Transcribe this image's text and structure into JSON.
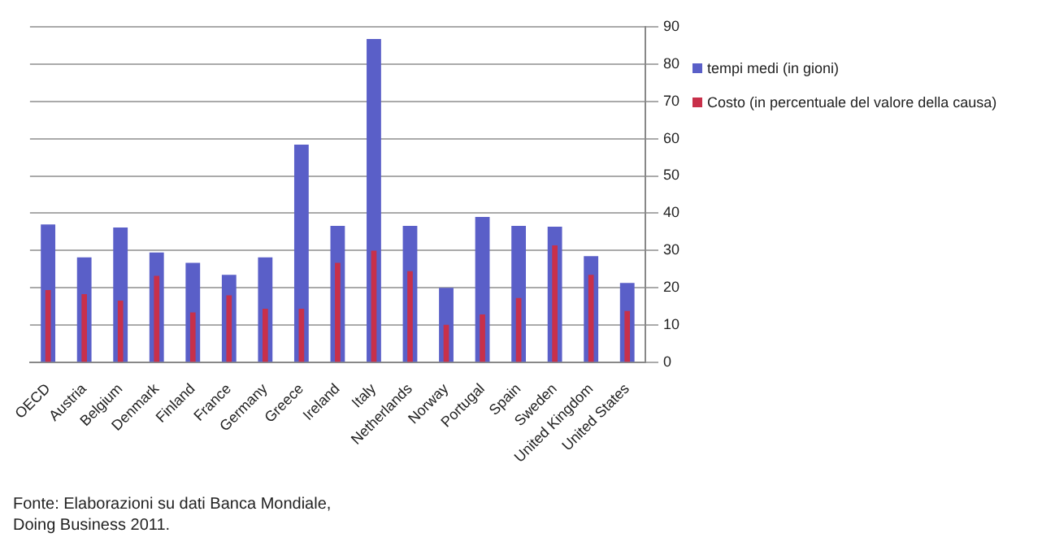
{
  "chart_data": {
    "type": "bar",
    "categories": [
      "OECD",
      "Austria",
      "Belgium",
      "Denmark",
      "Finland",
      "France",
      "Germany",
      "Greece",
      "Ireland",
      "Italy",
      "Netherlands",
      "Norway",
      "Portugal",
      "Spain",
      "Sweden",
      "United Kingdom",
      "United States"
    ],
    "series": [
      {
        "name": "tempi medi (in gioni)",
        "color": "#5a5fc8",
        "values": [
          37,
          28.2,
          36.2,
          29.5,
          26.7,
          23.5,
          28.2,
          58.4,
          36.6,
          86.7,
          36.6,
          20,
          39,
          36.6,
          36.4,
          28.5,
          21.3
        ]
      },
      {
        "name": "Costo (in percentuale del valore della causa)",
        "color": "#c8304a",
        "values": [
          19.4,
          18.3,
          16.6,
          23.2,
          13.4,
          18,
          14.4,
          14.4,
          26.7,
          30,
          24.5,
          10.1,
          12.9,
          17.3,
          31.4,
          23.5,
          13.8
        ]
      }
    ],
    "ylim": [
      0,
      90
    ],
    "yticks": [
      0,
      10,
      20,
      30,
      40,
      50,
      60,
      70,
      80,
      90
    ],
    "grid": "y",
    "legend": "top right",
    "annotations": [
      "Fonte: Elaborazioni su dati Banca Mondiale,",
      "Doing Business 2011."
    ]
  }
}
